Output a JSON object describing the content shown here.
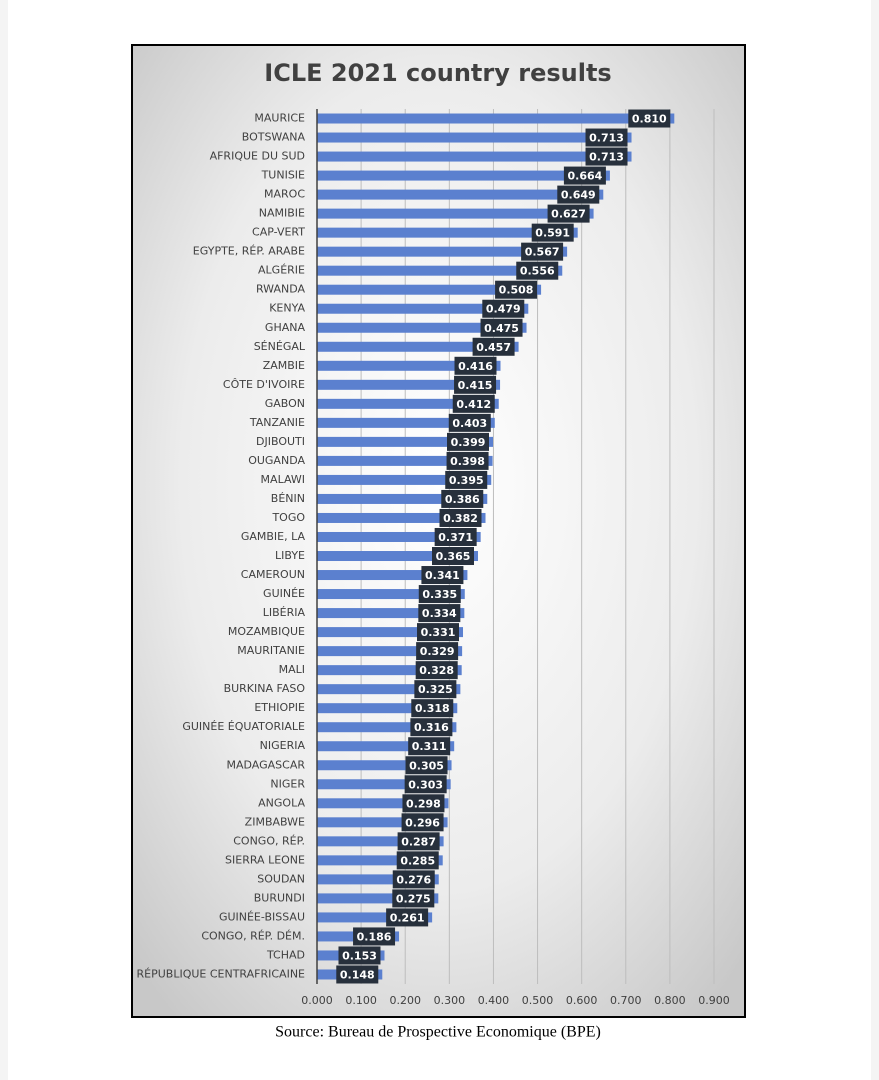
{
  "chart_data": {
    "type": "hbar",
    "title": "ICLE 2021 country results",
    "categories": [
      "MAURICE",
      "BOTSWANA",
      "AFRIQUE DU SUD",
      "TUNISIE",
      "MAROC",
      "NAMIBIE",
      "CAP-VERT",
      "EGYPTE, RÉP. ARABE",
      "ALGÉRIE",
      "RWANDA",
      "KENYA",
      "GHANA",
      "SÉNÉGAL",
      "ZAMBIE",
      "CÔTE D'IVOIRE",
      "GABON",
      "TANZANIE",
      "DJIBOUTI",
      "OUGANDA",
      "MALAWI",
      "BÉNIN",
      "TOGO",
      "GAMBIE, LA",
      "LIBYE",
      "CAMEROUN",
      "GUINÉE",
      "LIBÉRIA",
      "MOZAMBIQUE",
      "MAURITANIE",
      "MALI",
      "BURKINA FASO",
      "ETHIOPIE",
      "GUINÉE ÉQUATORIALE",
      "NIGERIA",
      "MADAGASCAR",
      "NIGER",
      "ANGOLA",
      "ZIMBABWE",
      "CONGO, RÉP.",
      "SIERRA LEONE",
      "SOUDAN",
      "BURUNDI",
      "GUINÉE-BISSAU",
      "CONGO, RÉP. DÉM.",
      "TCHAD",
      "RÉPUBLIQUE CENTRAFRICAINE"
    ],
    "values": [
      0.81,
      0.713,
      0.713,
      0.664,
      0.649,
      0.627,
      0.591,
      0.567,
      0.556,
      0.508,
      0.479,
      0.475,
      0.457,
      0.416,
      0.415,
      0.412,
      0.403,
      0.399,
      0.398,
      0.395,
      0.386,
      0.382,
      0.371,
      0.365,
      0.341,
      0.335,
      0.334,
      0.331,
      0.329,
      0.328,
      0.325,
      0.318,
      0.316,
      0.311,
      0.305,
      0.303,
      0.298,
      0.296,
      0.287,
      0.285,
      0.276,
      0.275,
      0.261,
      0.186,
      0.153,
      0.148
    ],
    "value_labels": [
      "0.810",
      "0.713",
      "0.713",
      "0.664",
      "0.649",
      "0.627",
      "0.591",
      "0.567",
      "0.556",
      "0.508",
      "0.479",
      "0.475",
      "0.457",
      "0.416",
      "0.415",
      "0.412",
      "0.403",
      "0.399",
      "0.398",
      "0.395",
      "0.386",
      "0.382",
      "0.371",
      "0.365",
      "0.341",
      "0.335",
      "0.334",
      "0.331",
      "0.329",
      "0.328",
      "0.325",
      "0.318",
      "0.316",
      "0.311",
      "0.305",
      "0.303",
      "0.298",
      "0.296",
      "0.287",
      "0.285",
      "0.276",
      "0.275",
      "0.261",
      "0.186",
      "0.153",
      "0.148"
    ],
    "color": "#5b80cf",
    "xlim": [
      0,
      0.9
    ],
    "xticks": [
      {
        "value": 0,
        "label": "0.000"
      },
      {
        "value": 0.1,
        "label": "0.100"
      },
      {
        "value": 0.2,
        "label": "0.200"
      },
      {
        "value": 0.3,
        "label": "0.300"
      },
      {
        "value": 0.4,
        "label": "0.400"
      },
      {
        "value": 0.5,
        "label": "0.500"
      },
      {
        "value": 0.6,
        "label": "0.600"
      },
      {
        "value": 0.7,
        "label": "0.700"
      },
      {
        "value": 0.8,
        "label": "0.800"
      },
      {
        "value": 0.9,
        "label": "0.900"
      }
    ],
    "grid": true
  },
  "source": "Source: Bureau de Prospective Economique (BPE)"
}
